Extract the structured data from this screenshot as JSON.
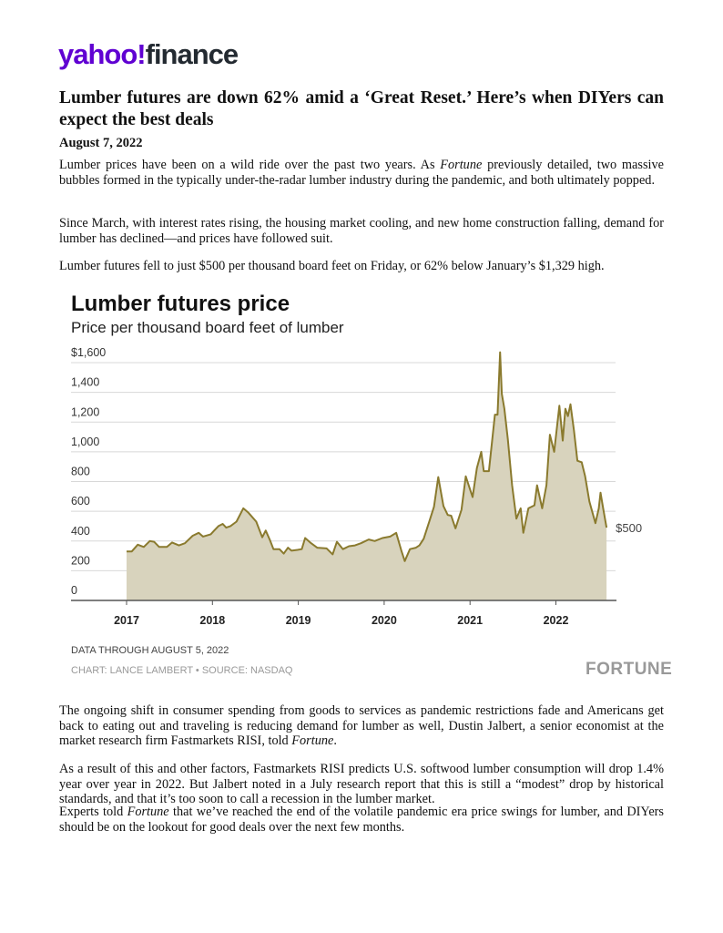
{
  "header": {
    "logo_part1": "yahoo!",
    "logo_part2": "finance"
  },
  "article": {
    "title": "Lumber futures are down 62% amid a ‘Great Reset.’ Here’s when DIYers can expect the best deals",
    "date": "August 7, 2022",
    "p1": {
      "a": "Lumber prices have been on a wild ride over the past two years. As ",
      "b": "Fortune",
      "c": " previously detailed, two massive bubbles formed in the typically under-the-radar lumber industry during the pandemic, and both ultimately popped."
    },
    "p2": "Since March, with interest rates rising, the housing market cooling, and new home construction falling, demand for lumber has declined—and prices have followed suit.",
    "p3": "Lumber futures fell to just $500 per thousand board feet on Friday, or 62% below January’s $1,329 high.",
    "p4": {
      "a": "The ongoing shift in consumer spending from goods to services as pandemic restrictions fade and Americans get back to eating out and traveling is reducing demand for lumber as well, Dustin Jalbert, a senior economist at the market research firm Fastmarkets RISI, told ",
      "b": "Fortune",
      "c": "."
    },
    "p5": "As a result of this and other factors, Fastmarkets RISI predicts U.S. softwood lumber consumption will drop 1.4% year over year in 2022. But Jalbert noted in a July research report that this is still a “modest” drop by historical standards, and that it’s too soon to call a recession in the lumber market.",
    "p6": {
      "a": "Experts told ",
      "b": "Fortune",
      "c": " that we’ve reached the end of the volatile pandemic era price swings for lumber, and DIYers should be on the lookout for good deals over the next few months."
    }
  },
  "chart_data": {
    "type": "area",
    "title": "Lumber futures price",
    "subtitle": "Price per thousand board feet of lumber",
    "xlabel": "",
    "ylabel": "",
    "ylim": [
      0,
      1600
    ],
    "yticks": [
      0,
      200,
      400,
      600,
      800,
      1000,
      1200,
      1400,
      1600
    ],
    "ytick_labels": [
      "0",
      "200",
      "400",
      "600",
      "800",
      "1,000",
      "1,200",
      "1,400",
      "$1,600"
    ],
    "xticks": [
      2017,
      2018,
      2019,
      2020,
      2021,
      2022
    ],
    "xtick_labels": [
      "2017",
      "2018",
      "2019",
      "2020",
      "2021",
      "2022"
    ],
    "end_label": "$500",
    "grid": true,
    "line_color": "#8a7a2e",
    "fill_color": "#d8d3bd",
    "x": [
      2017.0,
      2017.06,
      2017.13,
      2017.2,
      2017.27,
      2017.32,
      2017.38,
      2017.47,
      2017.53,
      2017.61,
      2017.68,
      2017.77,
      2017.84,
      2017.89,
      2017.98,
      2018.02,
      2018.07,
      2018.12,
      2018.16,
      2018.21,
      2018.28,
      2018.36,
      2018.42,
      2018.51,
      2018.58,
      2018.62,
      2018.67,
      2018.71,
      2018.78,
      2018.83,
      2018.88,
      2018.92,
      2018.99,
      2019.04,
      2019.08,
      2019.15,
      2019.22,
      2019.33,
      2019.4,
      2019.45,
      2019.52,
      2019.59,
      2019.66,
      2019.73,
      2019.82,
      2019.89,
      2019.98,
      2020.07,
      2020.14,
      2020.2,
      2020.24,
      2020.3,
      2020.37,
      2020.41,
      2020.46,
      2020.53,
      2020.58,
      2020.63,
      2020.69,
      2020.74,
      2020.78,
      2020.83,
      2020.9,
      2020.95,
      2021.03,
      2021.08,
      2021.13,
      2021.16,
      2021.22,
      2021.29,
      2021.32,
      2021.35,
      2021.37,
      2021.4,
      2021.44,
      2021.49,
      2021.54,
      2021.59,
      2021.62,
      2021.68,
      2021.75,
      2021.78,
      2021.84,
      2021.89,
      2021.93,
      2021.98,
      2022.04,
      2022.08,
      2022.11,
      2022.14,
      2022.17,
      2022.21,
      2022.25,
      2022.3,
      2022.34,
      2022.39,
      2022.46,
      2022.5,
      2022.52,
      2022.55,
      2022.59
    ],
    "y": [
      330,
      330,
      375,
      360,
      400,
      395,
      360,
      360,
      390,
      370,
      385,
      435,
      455,
      430,
      445,
      470,
      500,
      515,
      490,
      500,
      530,
      620,
      590,
      530,
      425,
      470,
      405,
      345,
      345,
      315,
      355,
      335,
      340,
      345,
      420,
      385,
      355,
      350,
      310,
      395,
      345,
      365,
      370,
      385,
      410,
      400,
      420,
      430,
      455,
      335,
      265,
      345,
      355,
      370,
      415,
      540,
      630,
      830,
      635,
      575,
      570,
      485,
      610,
      835,
      695,
      890,
      1000,
      870,
      870,
      1250,
      1250,
      1670,
      1390,
      1290,
      1085,
      775,
      550,
      620,
      455,
      620,
      640,
      775,
      620,
      775,
      1115,
      1000,
      1310,
      1075,
      1290,
      1240,
      1320,
      1145,
      940,
      930,
      835,
      665,
      520,
      620,
      725,
      620,
      490
    ],
    "notes": [
      "DATA THROUGH AUGUST 5, 2022",
      "CHART: LANCE LAMBERT • SOURCE: NASDAQ"
    ],
    "brand": "FORTUNE"
  }
}
